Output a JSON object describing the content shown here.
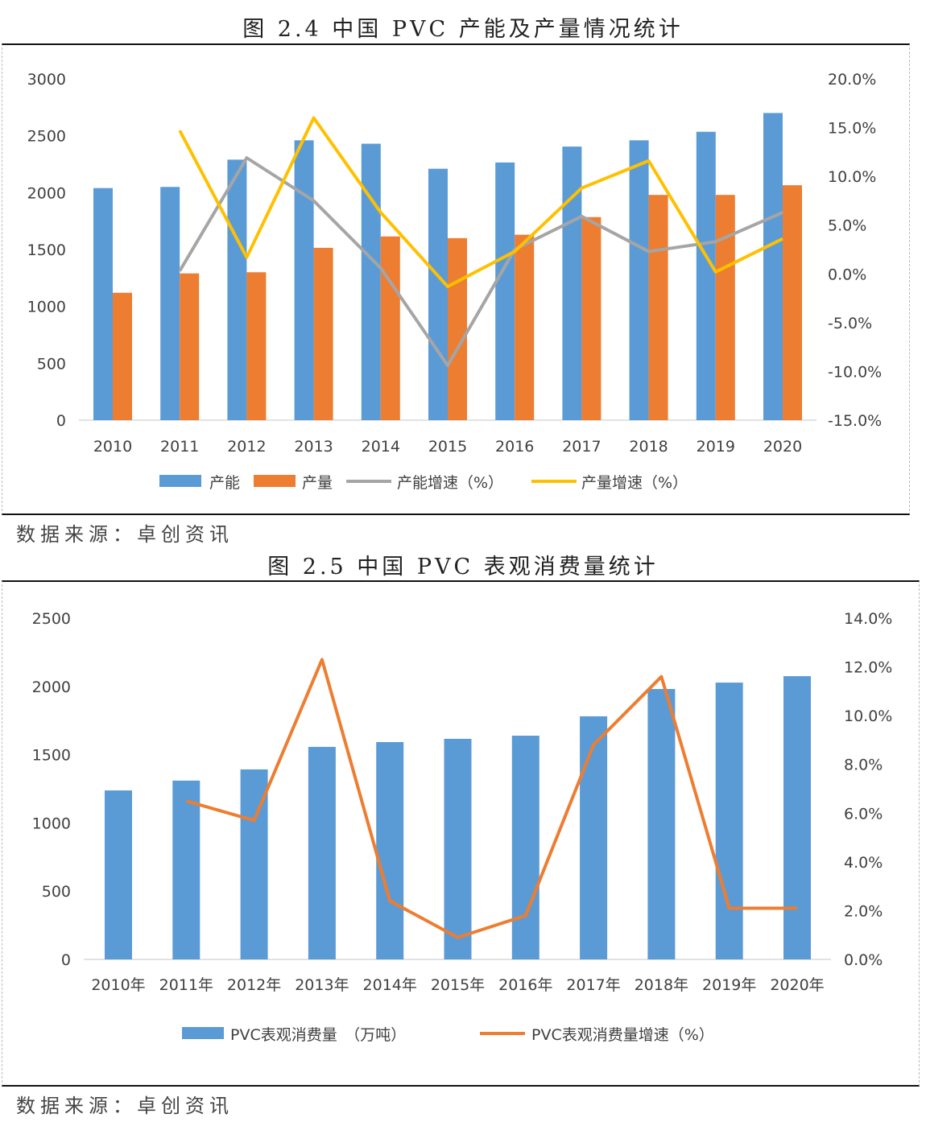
{
  "chart_data": [
    {
      "type": "bar",
      "title": "图 2.4 中国 PVC 产能及产量情况统计",
      "source": "数据来源：卓创资讯",
      "categories": [
        "2010",
        "2011",
        "2012",
        "2013",
        "2014",
        "2015",
        "2016",
        "2017",
        "2018",
        "2019",
        "2020"
      ],
      "y_left": {
        "range": [
          0,
          3000
        ],
        "ticks": [
          "0",
          "500",
          "1000",
          "1500",
          "2000",
          "2500",
          "3000"
        ]
      },
      "y_right": {
        "range": [
          -15,
          20
        ],
        "ticks": [
          "-15.0%",
          "-10.0%",
          "-5.0%",
          "0.0%",
          "5.0%",
          "10.0%",
          "15.0%",
          "20.0%"
        ]
      },
      "grid": false,
      "legend_position": "bottom",
      "series": [
        {
          "name": "产能",
          "kind": "bar",
          "axis": "left",
          "color": "#5B9BD5",
          "values": [
            2040,
            2050,
            2290,
            2460,
            2430,
            2210,
            2265,
            2405,
            2460,
            2535,
            2700
          ]
        },
        {
          "name": "产量",
          "kind": "bar",
          "axis": "left",
          "color": "#ED7D31",
          "values": [
            1120,
            1290,
            1300,
            1515,
            1615,
            1600,
            1630,
            1785,
            1980,
            1980,
            2065
          ]
        },
        {
          "name": "产能增速（%）",
          "kind": "line",
          "axis": "right",
          "color": "#A5A5A5",
          "values": [
            null,
            0.3,
            11.9,
            7.5,
            0.6,
            -9.4,
            2.5,
            5.9,
            2.3,
            3.3,
            6.3
          ]
        },
        {
          "name": "产量增速（%）",
          "kind": "line",
          "axis": "right",
          "color": "#FFC000",
          "values": [
            null,
            14.7,
            1.7,
            16.0,
            6.3,
            -1.3,
            2.3,
            8.8,
            11.6,
            0.2,
            3.6
          ]
        }
      ]
    },
    {
      "type": "bar",
      "title": "图 2.5 中国 PVC 表观消费量统计",
      "source": "数据来源：卓创资讯",
      "categories": [
        "2010年",
        "2011年",
        "2012年",
        "2013年",
        "2014年",
        "2015年",
        "2016年",
        "2017年",
        "2018年",
        "2019年",
        "2020年"
      ],
      "y_left": {
        "range": [
          0,
          2500
        ],
        "ticks": [
          "0",
          "500",
          "1000",
          "1500",
          "2000",
          "2500"
        ]
      },
      "y_right": {
        "range": [
          0,
          14
        ],
        "ticks": [
          "0.0%",
          "2.0%",
          "4.0%",
          "6.0%",
          "8.0%",
          "10.0%",
          "12.0%",
          "14.0%"
        ]
      },
      "grid": false,
      "legend_position": "bottom",
      "series": [
        {
          "name": "PVC表观消费量　（万吨）",
          "kind": "bar",
          "axis": "left",
          "color": "#5B9BD5",
          "values": [
            1238,
            1310,
            1392,
            1557,
            1592,
            1616,
            1639,
            1781,
            1981,
            2028,
            2075
          ]
        },
        {
          "name": "PVC表观消费量增速（%）",
          "kind": "line",
          "axis": "right",
          "color": "#ED7D31",
          "values": [
            null,
            6.5,
            5.7,
            12.3,
            2.4,
            0.9,
            1.8,
            8.8,
            11.6,
            2.1,
            2.1
          ]
        }
      ]
    }
  ]
}
